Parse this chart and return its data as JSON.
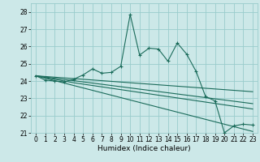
{
  "xlabel": "Humidex (Indice chaleur)",
  "xlim": [
    -0.5,
    23.5
  ],
  "ylim": [
    21.0,
    28.5
  ],
  "yticks": [
    21,
    22,
    23,
    24,
    25,
    26,
    27,
    28
  ],
  "xticks": [
    0,
    1,
    2,
    3,
    4,
    5,
    6,
    7,
    8,
    9,
    10,
    11,
    12,
    13,
    14,
    15,
    16,
    17,
    18,
    19,
    20,
    21,
    22,
    23
  ],
  "bg_color": "#cce8e8",
  "grid_color": "#99cccc",
  "line_color": "#1a6b5a",
  "main_line": [
    24.3,
    24.05,
    24.0,
    23.95,
    24.1,
    24.35,
    24.7,
    24.45,
    24.5,
    24.85,
    27.85,
    25.5,
    25.9,
    25.85,
    25.15,
    26.2,
    25.55,
    24.55,
    23.1,
    22.85,
    21.0,
    21.4,
    21.5,
    21.45
  ],
  "trend1": [
    24.3,
    24.16,
    24.02,
    23.88,
    23.74,
    23.6,
    23.46,
    23.32,
    23.18,
    23.04,
    22.9,
    22.76,
    22.62,
    22.48,
    22.34,
    22.2,
    22.06,
    21.92,
    21.78,
    21.64,
    21.5,
    21.36,
    21.22,
    21.08
  ],
  "trend2": [
    24.3,
    24.2,
    24.1,
    24.0,
    23.9,
    23.82,
    23.74,
    23.66,
    23.58,
    23.5,
    23.42,
    23.34,
    23.26,
    23.18,
    23.1,
    23.02,
    22.94,
    22.86,
    22.78,
    22.7,
    22.62,
    22.54,
    22.46,
    22.38
  ],
  "trend3": [
    24.3,
    24.23,
    24.16,
    24.09,
    24.02,
    23.95,
    23.88,
    23.81,
    23.74,
    23.67,
    23.6,
    23.53,
    23.46,
    23.39,
    23.32,
    23.25,
    23.18,
    23.11,
    23.04,
    22.97,
    22.9,
    22.83,
    22.76,
    22.69
  ],
  "trend4": [
    24.3,
    24.26,
    24.22,
    24.18,
    24.14,
    24.1,
    24.06,
    24.02,
    23.98,
    23.94,
    23.9,
    23.86,
    23.82,
    23.78,
    23.74,
    23.7,
    23.66,
    23.62,
    23.58,
    23.54,
    23.5,
    23.46,
    23.42,
    23.38
  ]
}
